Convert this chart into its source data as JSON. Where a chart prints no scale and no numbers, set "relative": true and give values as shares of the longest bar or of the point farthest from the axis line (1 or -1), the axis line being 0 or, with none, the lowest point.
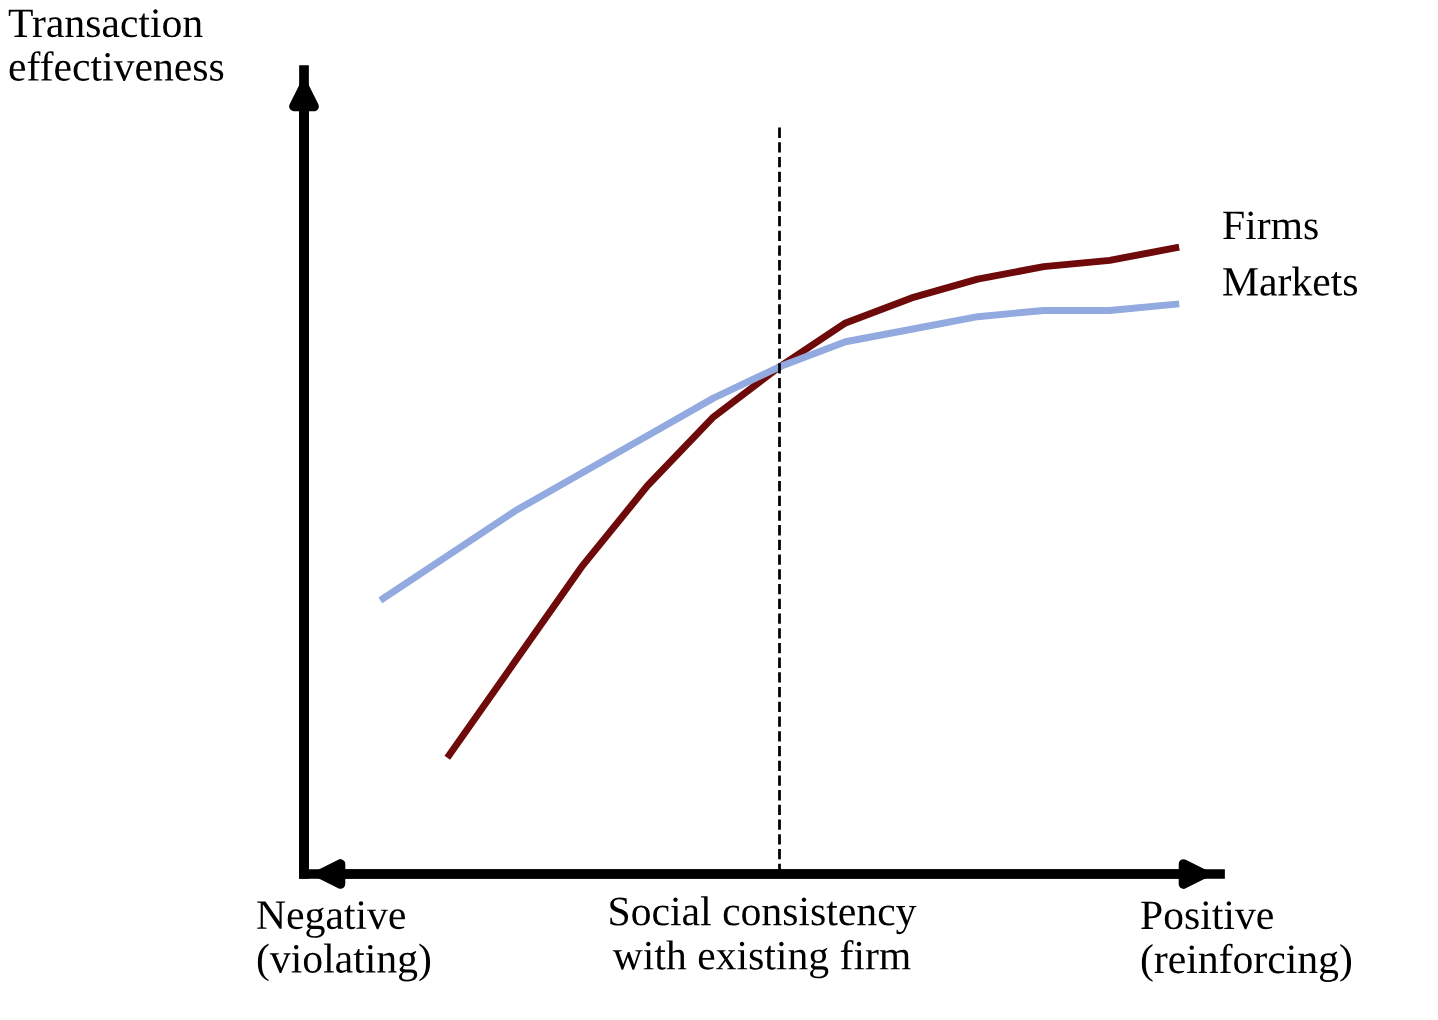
{
  "chart_data": {
    "type": "line",
    "relative": true,
    "ylabel": "Transaction effectiveness",
    "xlabel": "Social consistency\nwith existing firm",
    "categories": [
      null,
      null,
      null,
      null,
      null,
      null,
      null,
      null,
      null,
      null,
      null,
      null,
      null
    ],
    "series": [
      {
        "name": "Firms",
        "color": "#6e0a0a",
        "values": [
          null,
          0.19,
          0.34,
          0.49,
          0.62,
          0.73,
          0.81,
          0.88,
          0.92,
          0.95,
          0.97,
          0.98,
          1.0
        ]
      },
      {
        "name": "Markets",
        "color": "#92aadf",
        "values": [
          0.44,
          0.51,
          0.58,
          0.64,
          0.7,
          0.76,
          0.81,
          0.85,
          0.87,
          0.89,
          0.9,
          0.9,
          0.91
        ]
      }
    ],
    "annotations": [
      "Negative\n(violating)",
      "Positive\n(reinforcing)"
    ],
    "legend": false,
    "marker": "none",
    "line_style": "solid"
  }
}
